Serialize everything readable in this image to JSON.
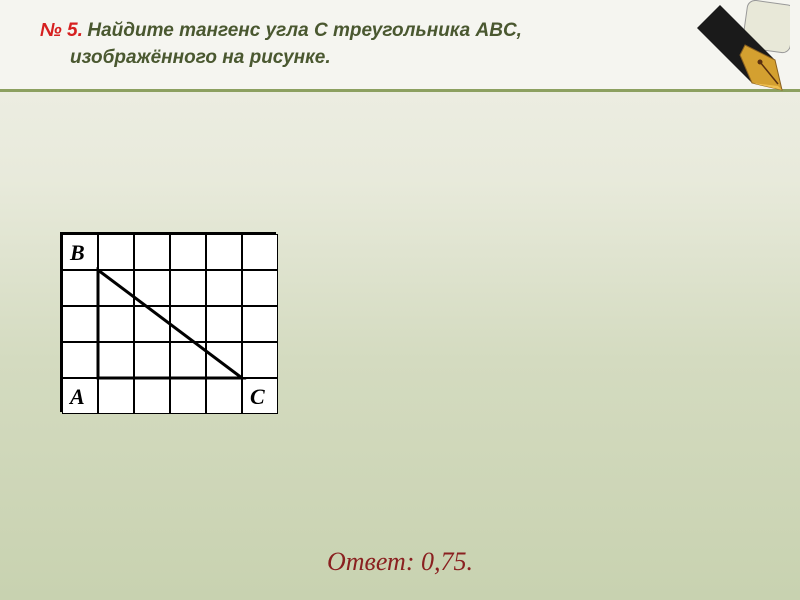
{
  "header": {
    "problem_number": "№ 5.",
    "problem_text_line1": "Найдите тангенс угла  C  треугольника  ABC,",
    "problem_text_line2": "изображённого на рисунке."
  },
  "figure": {
    "type": "diagram",
    "grid": {
      "cols": 6,
      "rows": 5,
      "cell_size": 36,
      "border_color": "#000000",
      "background_color": "#ffffff"
    },
    "labels": {
      "B": {
        "text": "B",
        "row": 0,
        "col": 0
      },
      "A": {
        "text": "A",
        "row": 4,
        "col": 0
      },
      "C": {
        "text": "C",
        "row": 4,
        "col": 5
      }
    },
    "triangle": {
      "vertices_grid": {
        "B": {
          "col": 1,
          "row": 1
        },
        "A": {
          "col": 1,
          "row": 4
        },
        "C": {
          "col": 5,
          "row": 4
        }
      },
      "stroke_color": "#000000",
      "stroke_width": 3
    }
  },
  "answer": {
    "label": "Ответ:",
    "value": "0,75."
  },
  "colors": {
    "accent_red": "#d62020",
    "text_olive": "#4a5830",
    "header_border": "#8ca060",
    "answer_color": "#8a2020"
  }
}
